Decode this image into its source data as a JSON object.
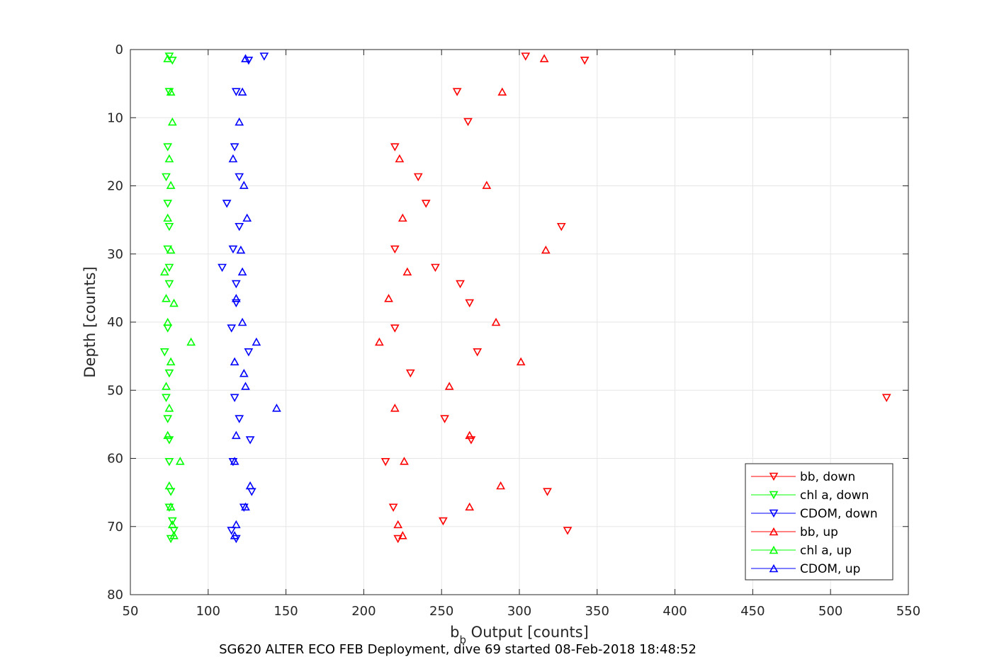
{
  "chart_data": {
    "type": "scatter",
    "xlabel_main": "b",
    "xlabel_sub": "b",
    "xlabel_rest": " Output [counts]",
    "ylabel": "Depth [counts]",
    "caption": "SG620 ALTER ECO FEB Deployment, dive 69 started 08-Feb-2018 18:48:52",
    "xlim": [
      50,
      550
    ],
    "ylim": [
      0,
      80
    ],
    "y_reversed": true,
    "grid": true,
    "legend_position": "bottom-right",
    "x_ticks": [
      "50",
      "100",
      "150",
      "200",
      "250",
      "300",
      "350",
      "400",
      "450",
      "500",
      "550"
    ],
    "y_ticks": [
      "0",
      "10",
      "20",
      "30",
      "40",
      "50",
      "60",
      "70",
      "80"
    ],
    "series": [
      {
        "name": "bb, down",
        "color": "#ff0000",
        "marker": "triangle-down",
        "points": [
          [
            304,
            1.0
          ],
          [
            342,
            1.6
          ],
          [
            260,
            6.2
          ],
          [
            267,
            10.6
          ],
          [
            220,
            14.3
          ],
          [
            235,
            18.7
          ],
          [
            240,
            22.6
          ],
          [
            327,
            26.0
          ],
          [
            220,
            29.3
          ],
          [
            246,
            32.0
          ],
          [
            262,
            34.4
          ],
          [
            268,
            37.2
          ],
          [
            220,
            40.9
          ],
          [
            273,
            44.4
          ],
          [
            230,
            47.5
          ],
          [
            536,
            51.1
          ],
          [
            252,
            54.2
          ],
          [
            269,
            57.3
          ],
          [
            214,
            60.5
          ],
          [
            318,
            64.9
          ],
          [
            219,
            67.2
          ],
          [
            251,
            69.2
          ],
          [
            331,
            70.6
          ],
          [
            222,
            71.8
          ]
        ]
      },
      {
        "name": "chl a, down",
        "color": "#00ff00",
        "marker": "triangle-down",
        "points": [
          [
            75,
            1.0
          ],
          [
            77,
            1.6
          ],
          [
            75,
            6.2
          ],
          [
            74,
            14.3
          ],
          [
            73,
            18.7
          ],
          [
            74,
            22.6
          ],
          [
            75,
            26.0
          ],
          [
            74,
            29.3
          ],
          [
            75,
            32.0
          ],
          [
            75,
            34.4
          ],
          [
            74,
            40.9
          ],
          [
            72,
            44.4
          ],
          [
            75,
            47.5
          ],
          [
            73,
            51.1
          ],
          [
            74,
            54.2
          ],
          [
            75,
            57.3
          ],
          [
            75,
            60.5
          ],
          [
            76,
            64.9
          ],
          [
            75,
            67.2
          ],
          [
            77,
            69.2
          ],
          [
            78,
            70.6
          ],
          [
            76,
            71.8
          ]
        ]
      },
      {
        "name": "CDOM, down",
        "color": "#0000ff",
        "marker": "triangle-down",
        "points": [
          [
            136,
            1.0
          ],
          [
            126,
            1.6
          ],
          [
            118,
            6.2
          ],
          [
            117,
            14.3
          ],
          [
            120,
            18.7
          ],
          [
            112,
            22.6
          ],
          [
            120,
            26.0
          ],
          [
            116,
            29.3
          ],
          [
            109,
            32.0
          ],
          [
            118,
            34.4
          ],
          [
            118,
            37.2
          ],
          [
            115,
            40.9
          ],
          [
            126,
            44.4
          ],
          [
            117,
            51.1
          ],
          [
            120,
            54.2
          ],
          [
            127,
            57.3
          ],
          [
            116,
            60.5
          ],
          [
            128,
            64.9
          ],
          [
            123,
            67.2
          ],
          [
            115,
            70.6
          ],
          [
            118,
            71.8
          ]
        ]
      },
      {
        "name": "bb, up",
        "color": "#ff0000",
        "marker": "triangle-up",
        "points": [
          [
            316,
            1.3
          ],
          [
            289,
            6.2
          ],
          [
            223,
            16.0
          ],
          [
            279,
            19.9
          ],
          [
            225,
            24.7
          ],
          [
            317,
            29.4
          ],
          [
            228,
            32.6
          ],
          [
            216,
            36.5
          ],
          [
            285,
            40.0
          ],
          [
            210,
            42.9
          ],
          [
            301,
            45.8
          ],
          [
            255,
            49.4
          ],
          [
            220,
            52.6
          ],
          [
            268,
            56.6
          ],
          [
            226,
            60.4
          ],
          [
            288,
            64.0
          ],
          [
            268,
            67.1
          ],
          [
            222,
            69.7
          ],
          [
            225,
            71.3
          ]
        ]
      },
      {
        "name": "chl a, up",
        "color": "#00ff00",
        "marker": "triangle-up",
        "points": [
          [
            74,
            1.3
          ],
          [
            76,
            6.2
          ],
          [
            77,
            10.6
          ],
          [
            75,
            16.0
          ],
          [
            76,
            19.9
          ],
          [
            74,
            24.7
          ],
          [
            76,
            29.4
          ],
          [
            72,
            32.6
          ],
          [
            73,
            36.5
          ],
          [
            78,
            37.2
          ],
          [
            74,
            40.0
          ],
          [
            89,
            42.9
          ],
          [
            76,
            45.8
          ],
          [
            73,
            49.4
          ],
          [
            75,
            52.6
          ],
          [
            74,
            56.6
          ],
          [
            82,
            60.4
          ],
          [
            75,
            64.0
          ],
          [
            76,
            67.1
          ],
          [
            77,
            69.7
          ],
          [
            78,
            71.3
          ]
        ]
      },
      {
        "name": "CDOM, up",
        "color": "#0000ff",
        "marker": "triangle-up",
        "points": [
          [
            124,
            1.3
          ],
          [
            122,
            6.2
          ],
          [
            120,
            10.6
          ],
          [
            116,
            16.0
          ],
          [
            123,
            19.9
          ],
          [
            125,
            24.7
          ],
          [
            121,
            29.4
          ],
          [
            122,
            32.6
          ],
          [
            118,
            36.5
          ],
          [
            122,
            40.0
          ],
          [
            131,
            42.9
          ],
          [
            117,
            45.8
          ],
          [
            123,
            47.5
          ],
          [
            124,
            49.4
          ],
          [
            144,
            52.6
          ],
          [
            118,
            56.6
          ],
          [
            117,
            60.4
          ],
          [
            127,
            64.0
          ],
          [
            124,
            67.1
          ],
          [
            118,
            69.7
          ],
          [
            117,
            71.3
          ]
        ]
      }
    ]
  }
}
